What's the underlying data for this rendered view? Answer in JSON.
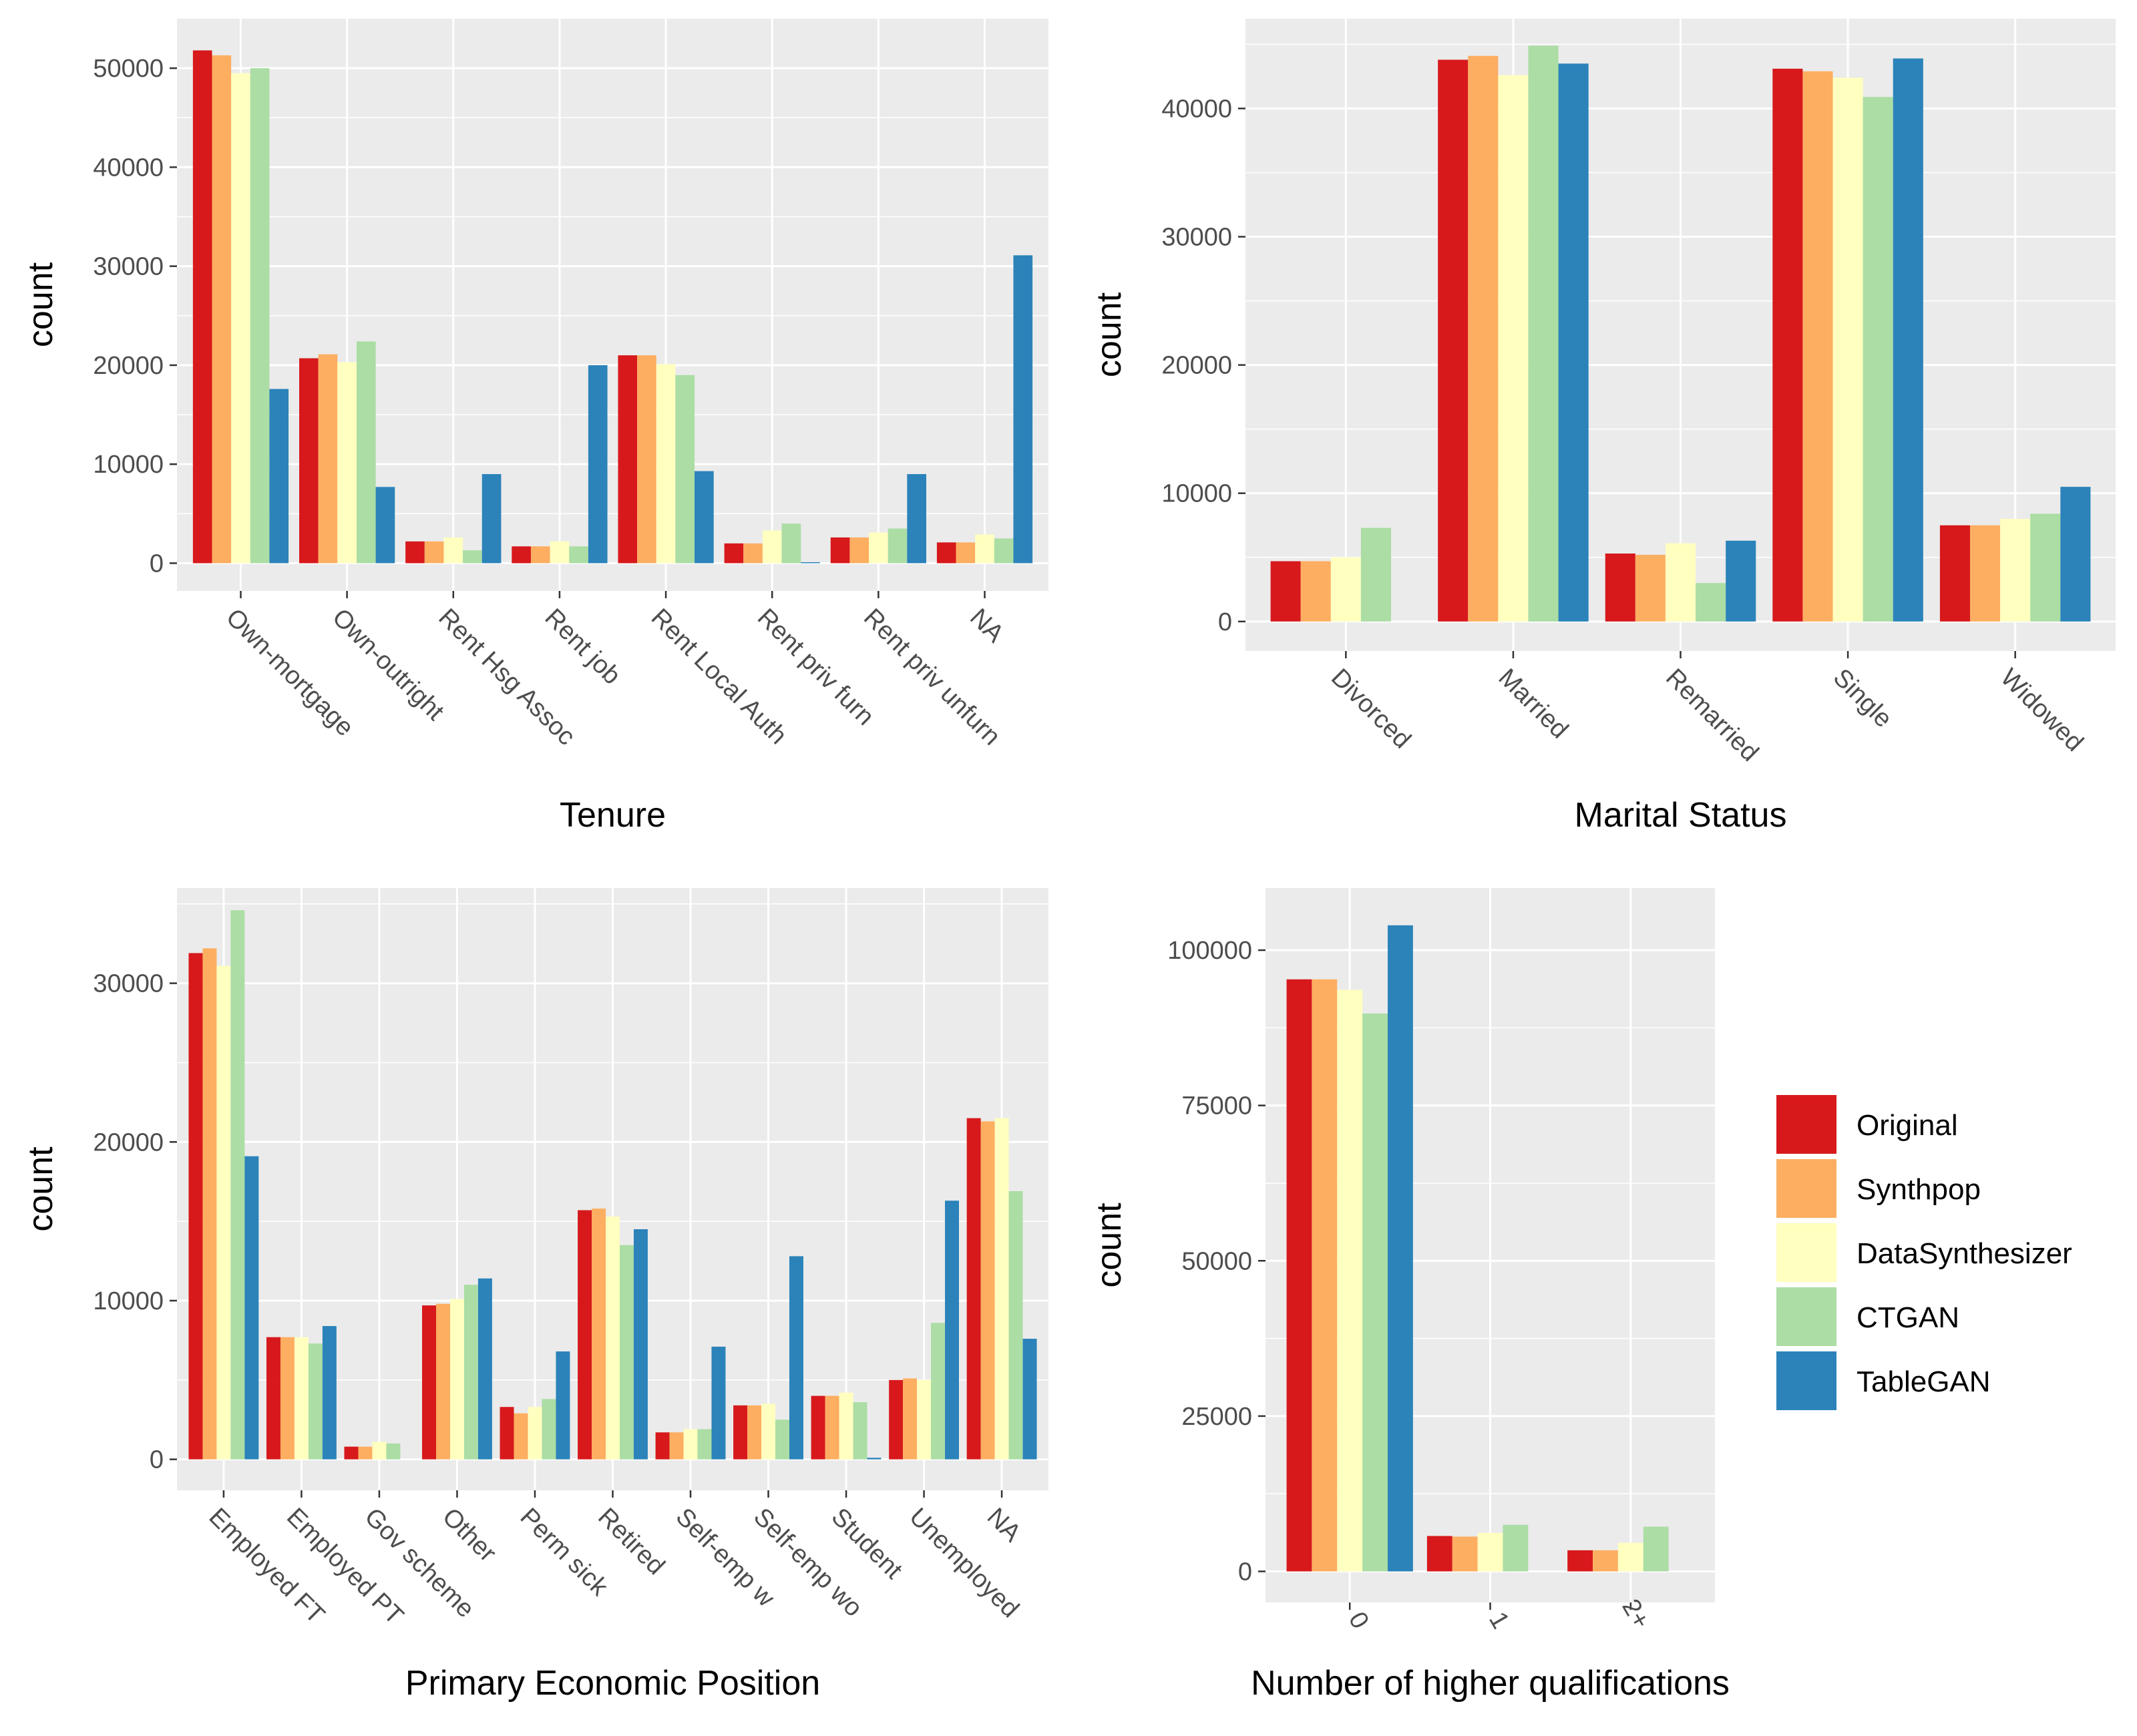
{
  "chart_data": [
    {
      "type": "bar",
      "xlabel": "Tenure",
      "ylabel": "count",
      "ylim": [
        -2800,
        55000
      ],
      "yticks": [
        0,
        10000,
        20000,
        30000,
        40000,
        50000
      ],
      "categories": [
        "Own-mortgage",
        "Own-outright",
        "Rent Hsg Assoc",
        "Rent job",
        "Rent Local Auth",
        "Rent priv furn",
        "Rent priv unfurn",
        "NA"
      ],
      "series": [
        {
          "name": "Original",
          "values": [
            51800,
            20700,
            2200,
            1700,
            21000,
            2000,
            2600,
            2100
          ]
        },
        {
          "name": "Synthpop",
          "values": [
            51300,
            21100,
            2200,
            1700,
            21000,
            2000,
            2600,
            2100
          ]
        },
        {
          "name": "DataSynthesizer",
          "values": [
            49500,
            20300,
            2600,
            2200,
            20100,
            3300,
            3100,
            2900
          ]
        },
        {
          "name": "CTGAN",
          "values": [
            50000,
            22400,
            1300,
            1700,
            19000,
            4000,
            3500,
            2500
          ]
        },
        {
          "name": "TableGAN",
          "values": [
            17600,
            7700,
            9000,
            20000,
            9300,
            100,
            9000,
            31100
          ]
        }
      ]
    },
    {
      "type": "bar",
      "xlabel": "Marital Status",
      "ylabel": "count",
      "ylim": [
        -2300,
        47000
      ],
      "yticks": [
        0,
        10000,
        20000,
        30000,
        40000
      ],
      "categories": [
        "Divorced",
        "Married",
        "Remarried",
        "Single",
        "Widowed"
      ],
      "series": [
        {
          "name": "Original",
          "values": [
            4700,
            43800,
            5300,
            43100,
            7500
          ]
        },
        {
          "name": "Synthpop",
          "values": [
            4700,
            44100,
            5200,
            42900,
            7500
          ]
        },
        {
          "name": "DataSynthesizer",
          "values": [
            5000,
            42600,
            6100,
            42400,
            8000
          ]
        },
        {
          "name": "CTGAN",
          "values": [
            7300,
            44900,
            3000,
            40900,
            8400
          ]
        },
        {
          "name": "TableGAN",
          "values": [
            0,
            43500,
            6300,
            43900,
            10500
          ]
        }
      ]
    },
    {
      "type": "bar",
      "xlabel": "Primary Economic Position",
      "ylabel": "count",
      "ylim": [
        -1950,
        36000
      ],
      "yticks": [
        0,
        10000,
        20000,
        30000
      ],
      "categories": [
        "Employed FT",
        "Employed PT",
        "Gov scheme",
        "Other",
        "Perm sick",
        "Retired",
        "Self-emp w",
        "Self-emp wo",
        "Student",
        "Unemployed",
        "NA"
      ],
      "series": [
        {
          "name": "Original",
          "values": [
            31900,
            7700,
            800,
            9700,
            3300,
            15700,
            1700,
            3400,
            4000,
            5000,
            21500
          ]
        },
        {
          "name": "Synthpop",
          "values": [
            32200,
            7700,
            800,
            9800,
            2900,
            15800,
            1700,
            3400,
            4000,
            5100,
            21300
          ]
        },
        {
          "name": "DataSynthesizer",
          "values": [
            31100,
            7700,
            1100,
            10100,
            3300,
            15300,
            1900,
            3500,
            4200,
            5000,
            21500
          ]
        },
        {
          "name": "CTGAN",
          "values": [
            34600,
            7300,
            1000,
            11000,
            3800,
            13500,
            1900,
            2500,
            3600,
            8600,
            16900
          ]
        },
        {
          "name": "TableGAN",
          "values": [
            19100,
            8400,
            0,
            11400,
            6800,
            14500,
            7100,
            12800,
            100,
            16300,
            7600
          ]
        }
      ]
    },
    {
      "type": "bar",
      "xlabel": "Number of higher qualifications",
      "ylabel": "count",
      "ylim": [
        -5000,
        110000
      ],
      "yticks": [
        0,
        25000,
        50000,
        75000,
        100000
      ],
      "categories": [
        "0",
        "1",
        "2+"
      ],
      "series": [
        {
          "name": "Original",
          "values": [
            95300,
            5700,
            3400
          ]
        },
        {
          "name": "Synthpop",
          "values": [
            95300,
            5600,
            3400
          ]
        },
        {
          "name": "DataSynthesizer",
          "values": [
            93600,
            6200,
            4600
          ]
        },
        {
          "name": "CTGAN",
          "values": [
            89800,
            7500,
            7200
          ]
        },
        {
          "name": "TableGAN",
          "values": [
            104000,
            0,
            0
          ]
        }
      ]
    }
  ],
  "legend": {
    "entries": [
      {
        "label": "Original",
        "color": "#d7191c"
      },
      {
        "label": "Synthpop",
        "color": "#fdae61"
      },
      {
        "label": "DataSynthesizer",
        "color": "#ffffbf"
      },
      {
        "label": "CTGAN",
        "color": "#abdda4"
      },
      {
        "label": "TableGAN",
        "color": "#2b83ba"
      }
    ]
  }
}
